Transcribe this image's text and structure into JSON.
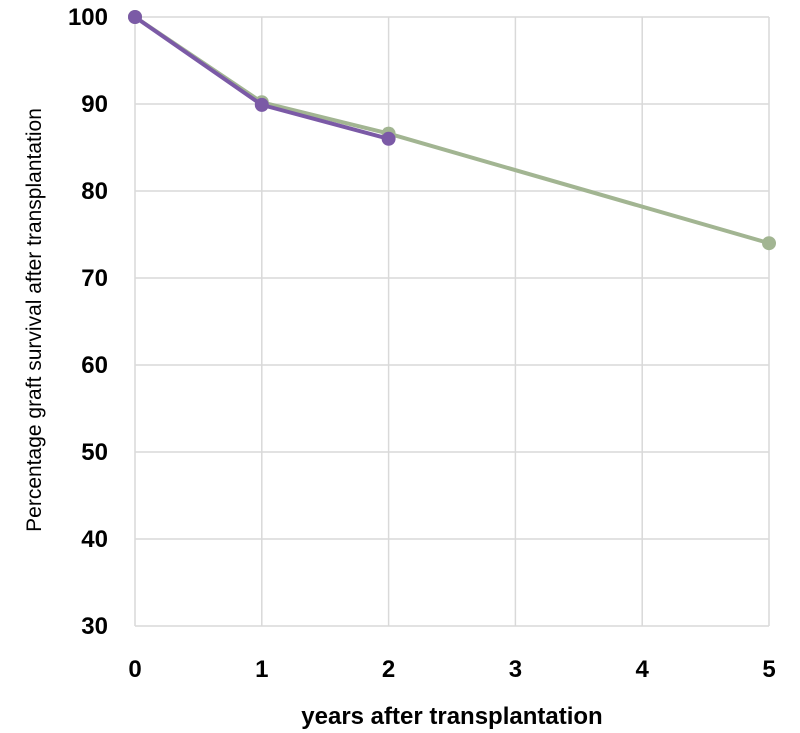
{
  "chart_data": {
    "type": "line",
    "title": "",
    "xlabel": "years after transplantation",
    "ylabel": "Percentage graft survival after transplantation",
    "xlim": [
      0,
      5
    ],
    "ylim": [
      30,
      100
    ],
    "x_ticks": [
      0,
      1,
      2,
      3,
      4,
      5
    ],
    "y_ticks": [
      30,
      40,
      50,
      60,
      70,
      80,
      90,
      100
    ],
    "grid": true,
    "legend": "none",
    "series": [
      {
        "color": "#a2b592",
        "x": [
          0,
          1,
          2,
          5
        ],
        "y": [
          100,
          90.2,
          86.6,
          74
        ]
      },
      {
        "color": "#7b5aa6",
        "x": [
          0,
          1,
          2
        ],
        "y": [
          100,
          89.9,
          86
        ]
      }
    ]
  }
}
